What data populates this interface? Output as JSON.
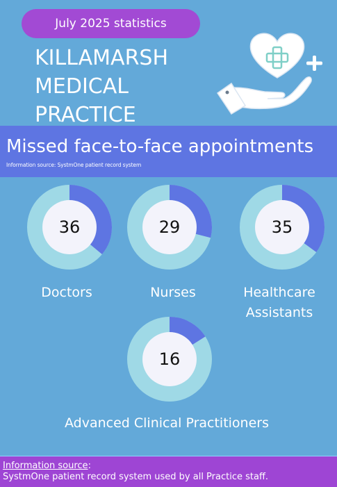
{
  "header": {
    "period_badge": "July 2025 statistics",
    "practice_lines": [
      "KILLAMARSH",
      "MEDICAL",
      "PRACTICE"
    ],
    "hero_icon": "hand-holding-heart-icon"
  },
  "banner": {
    "title": "Missed face-to-face appointments",
    "source_note": "Information source: SystmOne patient record system"
  },
  "colors": {
    "background": "#63a9d9",
    "banner": "#5e75e2",
    "badge": "#a24ad4",
    "ring_track": "#9fd9e6",
    "ring_fill": "#5e75e2",
    "center": "#f3f3fb"
  },
  "stats": [
    {
      "value": "36",
      "label_lines": [
        "Doctors"
      ],
      "fraction": 0.36
    },
    {
      "value": "29",
      "label_lines": [
        "Nurses"
      ],
      "fraction": 0.29
    },
    {
      "value": "35",
      "label_lines": [
        "Healthcare",
        "Assistants"
      ],
      "fraction": 0.35
    },
    {
      "value": "16",
      "label_lines": [
        "Advanced Clinical Practitioners"
      ],
      "fraction": 0.16
    }
  ],
  "footer": {
    "source_heading": "Information source",
    "source_suffix": ":",
    "source_text": "SystmOne patient record system used by all Practice staff."
  }
}
